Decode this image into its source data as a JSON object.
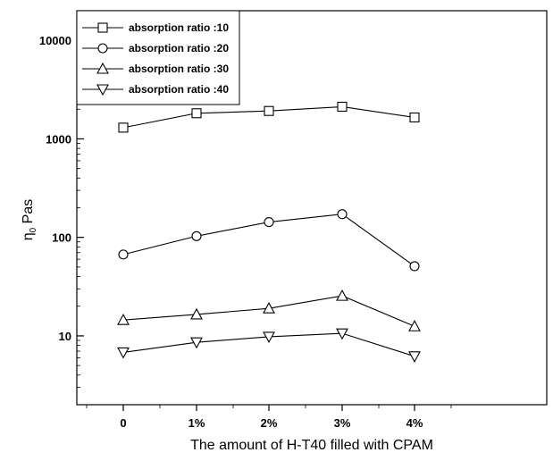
{
  "chart_data": {
    "type": "line",
    "x_axis": {
      "label": "The amount of H-T40 filled with CPAM",
      "categories": [
        "0",
        "1%",
        "2%",
        "3%",
        "4%"
      ]
    },
    "y_axis": {
      "label": "η",
      "label_subscript": "0",
      "label_suffix": " Pas",
      "scale": "log",
      "range": [
        2,
        20000
      ],
      "ticks": [
        10,
        100,
        1000,
        10000
      ],
      "tick_labels": [
        "10",
        "100",
        "1000",
        "10000"
      ]
    },
    "legend_position": "top-left",
    "series": [
      {
        "name": "absorption ratio :10",
        "marker": "square",
        "values": [
          1300,
          1820,
          1920,
          2120,
          1650
        ]
      },
      {
        "name": "absorption ratio :20",
        "marker": "circle",
        "values": [
          67,
          103,
          143,
          172,
          51
        ]
      },
      {
        "name": "absorption ratio :30",
        "marker": "triangle-up",
        "values": [
          14.5,
          16.5,
          19,
          25.5,
          12.5
        ]
      },
      {
        "name": "absorption ratio :40",
        "marker": "triangle-down",
        "values": [
          6.8,
          8.6,
          9.8,
          10.6,
          6.2
        ]
      }
    ]
  }
}
